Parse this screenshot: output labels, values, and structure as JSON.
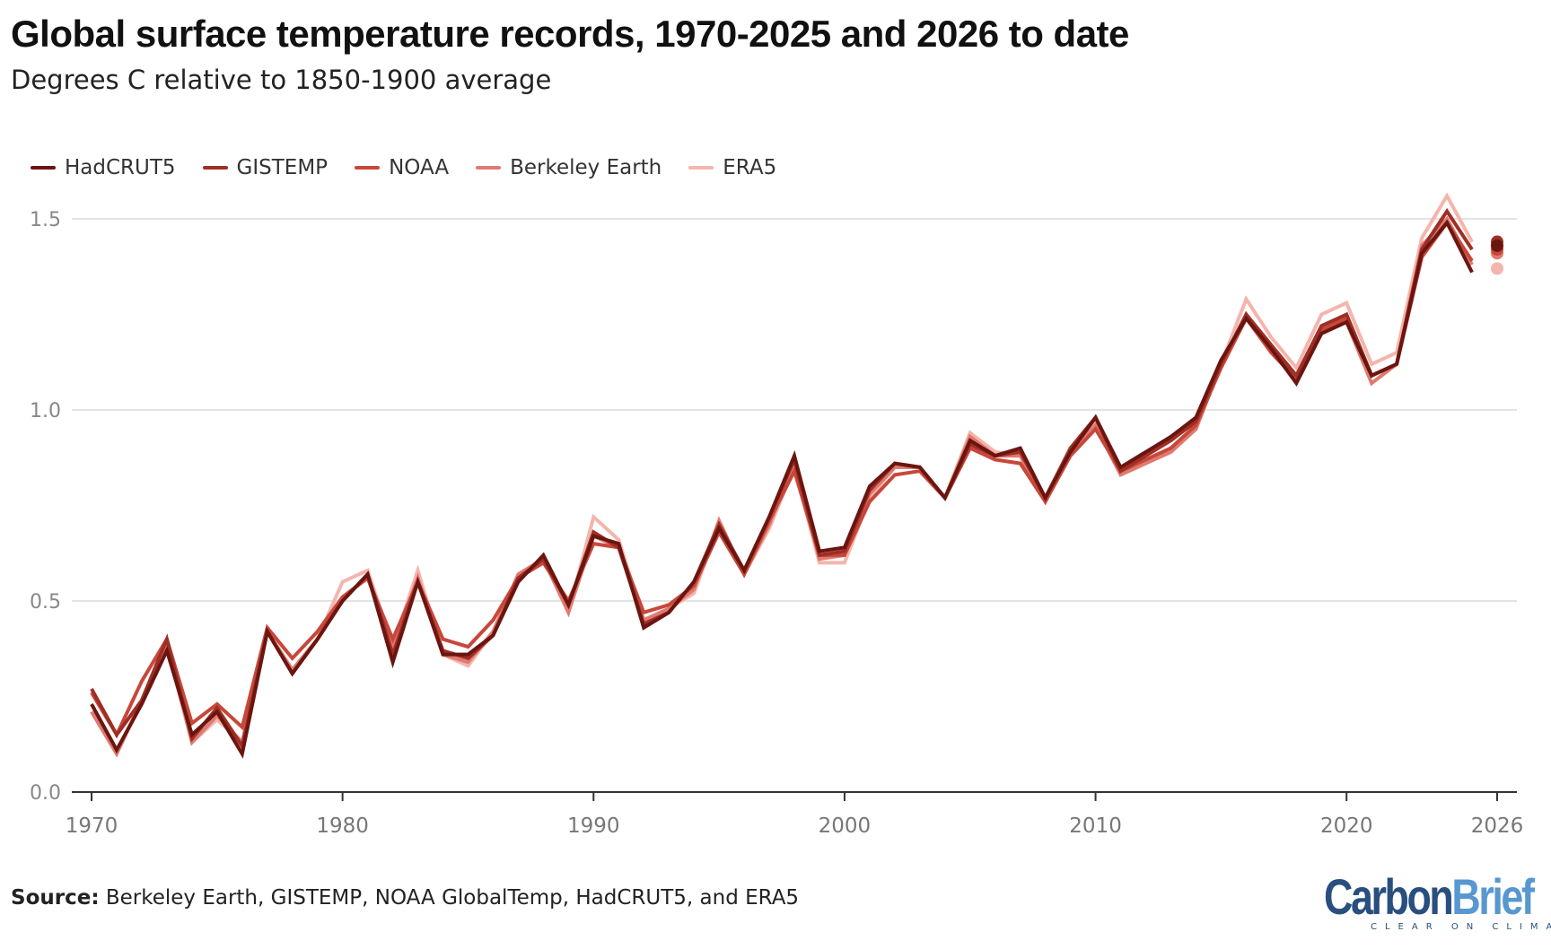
{
  "title": "Global surface temperature records, 1970-2025 and 2026 to date",
  "subtitle": "Degrees C relative to 1850-1900 average",
  "source_label": "Source:",
  "source_text": " Berkeley Earth, GISTEMP, NOAA GlobalTemp, HadCRUT5, and ERA5",
  "logo": {
    "text_dark": "Carbon",
    "text_light": "Brief",
    "tagline": "CLEAR ON CLIMATE",
    "colors": {
      "dark": "#284f7d",
      "light": "#5897cf"
    }
  },
  "chart_data": {
    "type": "line",
    "title": "Global surface temperature records, 1970-2025 and 2026 to date",
    "xlabel": "",
    "ylabel": "",
    "xlim": [
      1970,
      2026
    ],
    "ylim": [
      0,
      1.6
    ],
    "x_ticks": [
      "1970",
      "1980",
      "1990",
      "2000",
      "2010",
      "2020",
      "2026"
    ],
    "x_tick_values": [
      1970,
      1980,
      1990,
      2000,
      2010,
      2020,
      2026
    ],
    "y_ticks": [
      "0.0",
      "0.5",
      "1.0",
      "1.5"
    ],
    "y_tick_values": [
      0,
      0.5,
      1.0,
      1.5
    ],
    "grid": "horizontal",
    "legend_position": "top-left",
    "x_start": 1970,
    "series": [
      {
        "name": "HadCRUT5",
        "color": "#6b1510",
        "values": [
          0.23,
          0.11,
          0.23,
          0.37,
          0.15,
          0.21,
          0.1,
          0.42,
          0.31,
          0.4,
          0.5,
          0.57,
          0.34,
          0.55,
          0.36,
          0.36,
          0.41,
          0.55,
          0.62,
          0.49,
          0.67,
          0.65,
          0.43,
          0.47,
          0.55,
          0.69,
          0.58,
          0.72,
          0.88,
          0.63,
          0.64,
          0.8,
          0.86,
          0.85,
          0.77,
          0.92,
          0.88,
          0.9,
          0.77,
          0.89,
          0.98,
          0.85,
          0.89,
          0.93,
          0.98,
          1.13,
          1.24,
          1.16,
          1.07,
          1.2,
          1.23,
          1.09,
          1.12,
          1.41,
          1.49,
          1.36
        ],
        "value_2026": 1.43
      },
      {
        "name": "GISTEMP",
        "color": "#9e2f25",
        "values": [
          0.27,
          0.15,
          0.24,
          0.4,
          0.14,
          0.22,
          0.12,
          0.42,
          0.31,
          0.4,
          0.5,
          0.57,
          0.36,
          0.55,
          0.37,
          0.35,
          0.41,
          0.56,
          0.61,
          0.49,
          0.68,
          0.64,
          0.44,
          0.47,
          0.55,
          0.7,
          0.58,
          0.72,
          0.87,
          0.62,
          0.63,
          0.79,
          0.86,
          0.85,
          0.77,
          0.91,
          0.88,
          0.89,
          0.77,
          0.9,
          0.98,
          0.84,
          0.88,
          0.92,
          0.97,
          1.12,
          1.25,
          1.17,
          1.09,
          1.22,
          1.25,
          1.09,
          1.12,
          1.42,
          1.52,
          1.42
        ],
        "value_2026": 1.44
      },
      {
        "name": "NOAA",
        "color": "#c8473a",
        "values": [
          0.26,
          0.15,
          0.29,
          0.4,
          0.18,
          0.23,
          0.17,
          0.43,
          0.35,
          0.42,
          0.51,
          0.56,
          0.4,
          0.55,
          0.4,
          0.38,
          0.45,
          0.56,
          0.6,
          0.5,
          0.65,
          0.64,
          0.47,
          0.49,
          0.54,
          0.68,
          0.57,
          0.71,
          0.84,
          0.62,
          0.62,
          0.76,
          0.83,
          0.84,
          0.77,
          0.9,
          0.87,
          0.86,
          0.76,
          0.88,
          0.95,
          0.84,
          0.87,
          0.9,
          0.96,
          1.11,
          1.24,
          1.15,
          1.08,
          1.21,
          1.24,
          1.09,
          1.12,
          1.4,
          1.49,
          1.39
        ],
        "value_2026": 1.42
      },
      {
        "name": "Berkeley Earth",
        "color": "#e07a70",
        "values": [
          0.21,
          0.1,
          0.24,
          0.39,
          0.13,
          0.2,
          0.13,
          0.42,
          0.32,
          0.4,
          0.51,
          0.56,
          0.38,
          0.56,
          0.36,
          0.34,
          0.42,
          0.57,
          0.61,
          0.47,
          0.67,
          0.64,
          0.45,
          0.48,
          0.53,
          0.71,
          0.57,
          0.7,
          0.86,
          0.61,
          0.62,
          0.78,
          0.85,
          0.85,
          0.77,
          0.93,
          0.88,
          0.88,
          0.76,
          0.89,
          0.96,
          0.83,
          0.86,
          0.89,
          0.95,
          1.12,
          1.25,
          1.16,
          1.08,
          1.2,
          1.23,
          1.07,
          1.12,
          1.43,
          1.5,
          1.38
        ],
        "value_2026": 1.41
      },
      {
        "name": "ERA5",
        "color": "#f4b5ad",
        "values": [
          0.21,
          0.1,
          0.24,
          0.38,
          0.13,
          0.19,
          0.13,
          0.42,
          0.31,
          0.4,
          0.55,
          0.58,
          0.38,
          0.58,
          0.36,
          0.33,
          0.42,
          0.56,
          0.61,
          0.47,
          0.72,
          0.66,
          0.45,
          0.48,
          0.52,
          0.7,
          0.57,
          0.69,
          0.85,
          0.6,
          0.6,
          0.77,
          0.85,
          0.85,
          0.77,
          0.94,
          0.89,
          0.88,
          0.76,
          0.89,
          0.97,
          0.84,
          0.86,
          0.89,
          0.95,
          1.12,
          1.29,
          1.19,
          1.11,
          1.25,
          1.28,
          1.12,
          1.15,
          1.45,
          1.56,
          1.44
        ],
        "value_2026": 1.37
      }
    ]
  }
}
